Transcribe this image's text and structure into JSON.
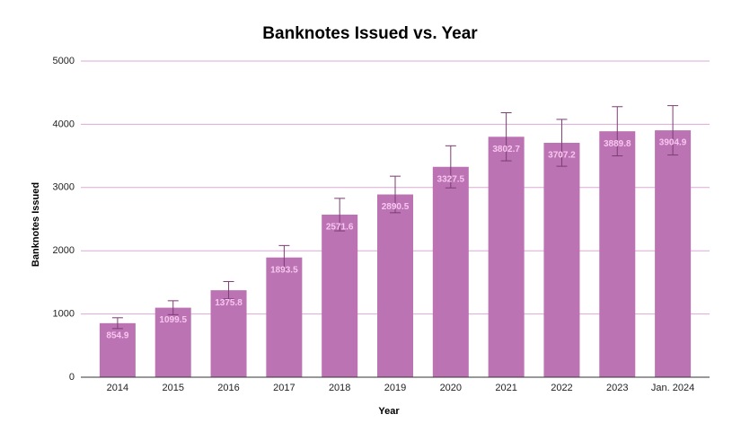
{
  "chart_data": {
    "type": "bar",
    "title": "Banknotes Issued vs. Year",
    "x_label": "Year",
    "y_label": "Banknotes Issued",
    "categories": [
      "2014",
      "2015",
      "2016",
      "2017",
      "2018",
      "2019",
      "2020",
      "2021",
      "2022",
      "2023",
      "Jan. 2024"
    ],
    "values": [
      854.9,
      1099.5,
      1375.8,
      1893.5,
      2571.6,
      2890.5,
      3327.5,
      3802.7,
      3707.2,
      3889.8,
      3904.9
    ],
    "errors": [
      85.49,
      109.95,
      137.58,
      189.35,
      257.16,
      289.05,
      332.75,
      380.27,
      370.72,
      388.98,
      390.49
    ],
    "color": "#bc73b3",
    "error_color": "#7b3d72",
    "label_color": "#f7c6f0",
    "grid_color": "#dcaad6",
    "ylim": [
      0,
      5000
    ],
    "yticks": [
      0,
      1000,
      2000,
      3000,
      4000,
      5000
    ],
    "grid": true
  }
}
